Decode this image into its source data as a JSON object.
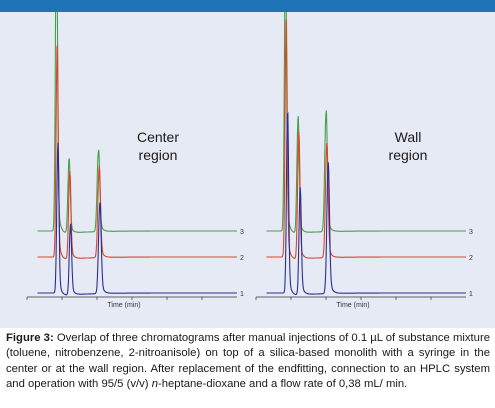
{
  "chart_data": [
    {
      "type": "line",
      "title": "",
      "annotation": [
        "Center",
        "region"
      ],
      "xlabel": "Time (min)",
      "ylabel": "",
      "xlim": [
        0,
        3
      ],
      "xticks": [
        0,
        0.5,
        1.0,
        1.5,
        2.0,
        2.5
      ],
      "series": [
        {
          "name": "3",
          "color": "#44a14a",
          "baseline": 0.75,
          "peaks": [
            {
              "t": 0.42,
              "h": 9.3
            },
            {
              "t": 0.6,
              "h": 2.3
            },
            {
              "t": 1.02,
              "h": 2.5
            }
          ]
        },
        {
          "name": "2",
          "color": "#d9462a",
          "baseline": 0.35,
          "peaks": [
            {
              "t": 0.43,
              "h": 6.6
            },
            {
              "t": 0.61,
              "h": 2.7
            },
            {
              "t": 1.03,
              "h": 2.8
            }
          ]
        },
        {
          "name": "1",
          "color": "#2b2f8f",
          "baseline": 0.0,
          "peaks": [
            {
              "t": 0.44,
              "h": 4.6
            },
            {
              "t": 0.62,
              "h": 2.2
            },
            {
              "t": 1.04,
              "h": 2.8
            }
          ]
        }
      ]
    },
    {
      "type": "line",
      "title": "",
      "annotation": [
        "Wall",
        "region"
      ],
      "xlabel": "Time (min)",
      "ylabel": "",
      "xlim": [
        0,
        3
      ],
      "xticks": [
        0,
        0.5,
        1.0,
        1.5,
        2.0,
        2.5
      ],
      "series": [
        {
          "name": "3",
          "color": "#44a14a",
          "baseline": 0.75,
          "peaks": [
            {
              "t": 0.42,
              "h": 9.0
            },
            {
              "t": 0.6,
              "h": 3.6
            },
            {
              "t": 1.0,
              "h": 3.7
            }
          ]
        },
        {
          "name": "2",
          "color": "#d9462a",
          "baseline": 0.35,
          "peaks": [
            {
              "t": 0.43,
              "h": 7.4
            },
            {
              "t": 0.61,
              "h": 3.9
            },
            {
              "t": 1.01,
              "h": 3.5
            }
          ]
        },
        {
          "name": "1",
          "color": "#2b2f8f",
          "baseline": 0.0,
          "peaks": [
            {
              "t": 0.45,
              "h": 5.6
            },
            {
              "t": 0.63,
              "h": 3.3
            },
            {
              "t": 1.03,
              "h": 4.0
            }
          ]
        }
      ]
    }
  ],
  "caption": {
    "label": "Figure 3:",
    "text_1": " Overlap of three chromatograms after manual injections of 0.1 µL of substance mixture (toluene, nitrobenzene, 2-nitroanisole) on top of a silica-based monolith with a syringe in the center or at the wall region. After replacement of the endfitting, connection to an HPLC system and operation with 95/5 (v/v) ",
    "italic": "n",
    "text_2": "-heptane-dioxane and a flow rate of 0,38 mL/ min."
  },
  "colors": {
    "top_bar": "#1f74b8",
    "panel_bg": "#e6eaf4"
  }
}
